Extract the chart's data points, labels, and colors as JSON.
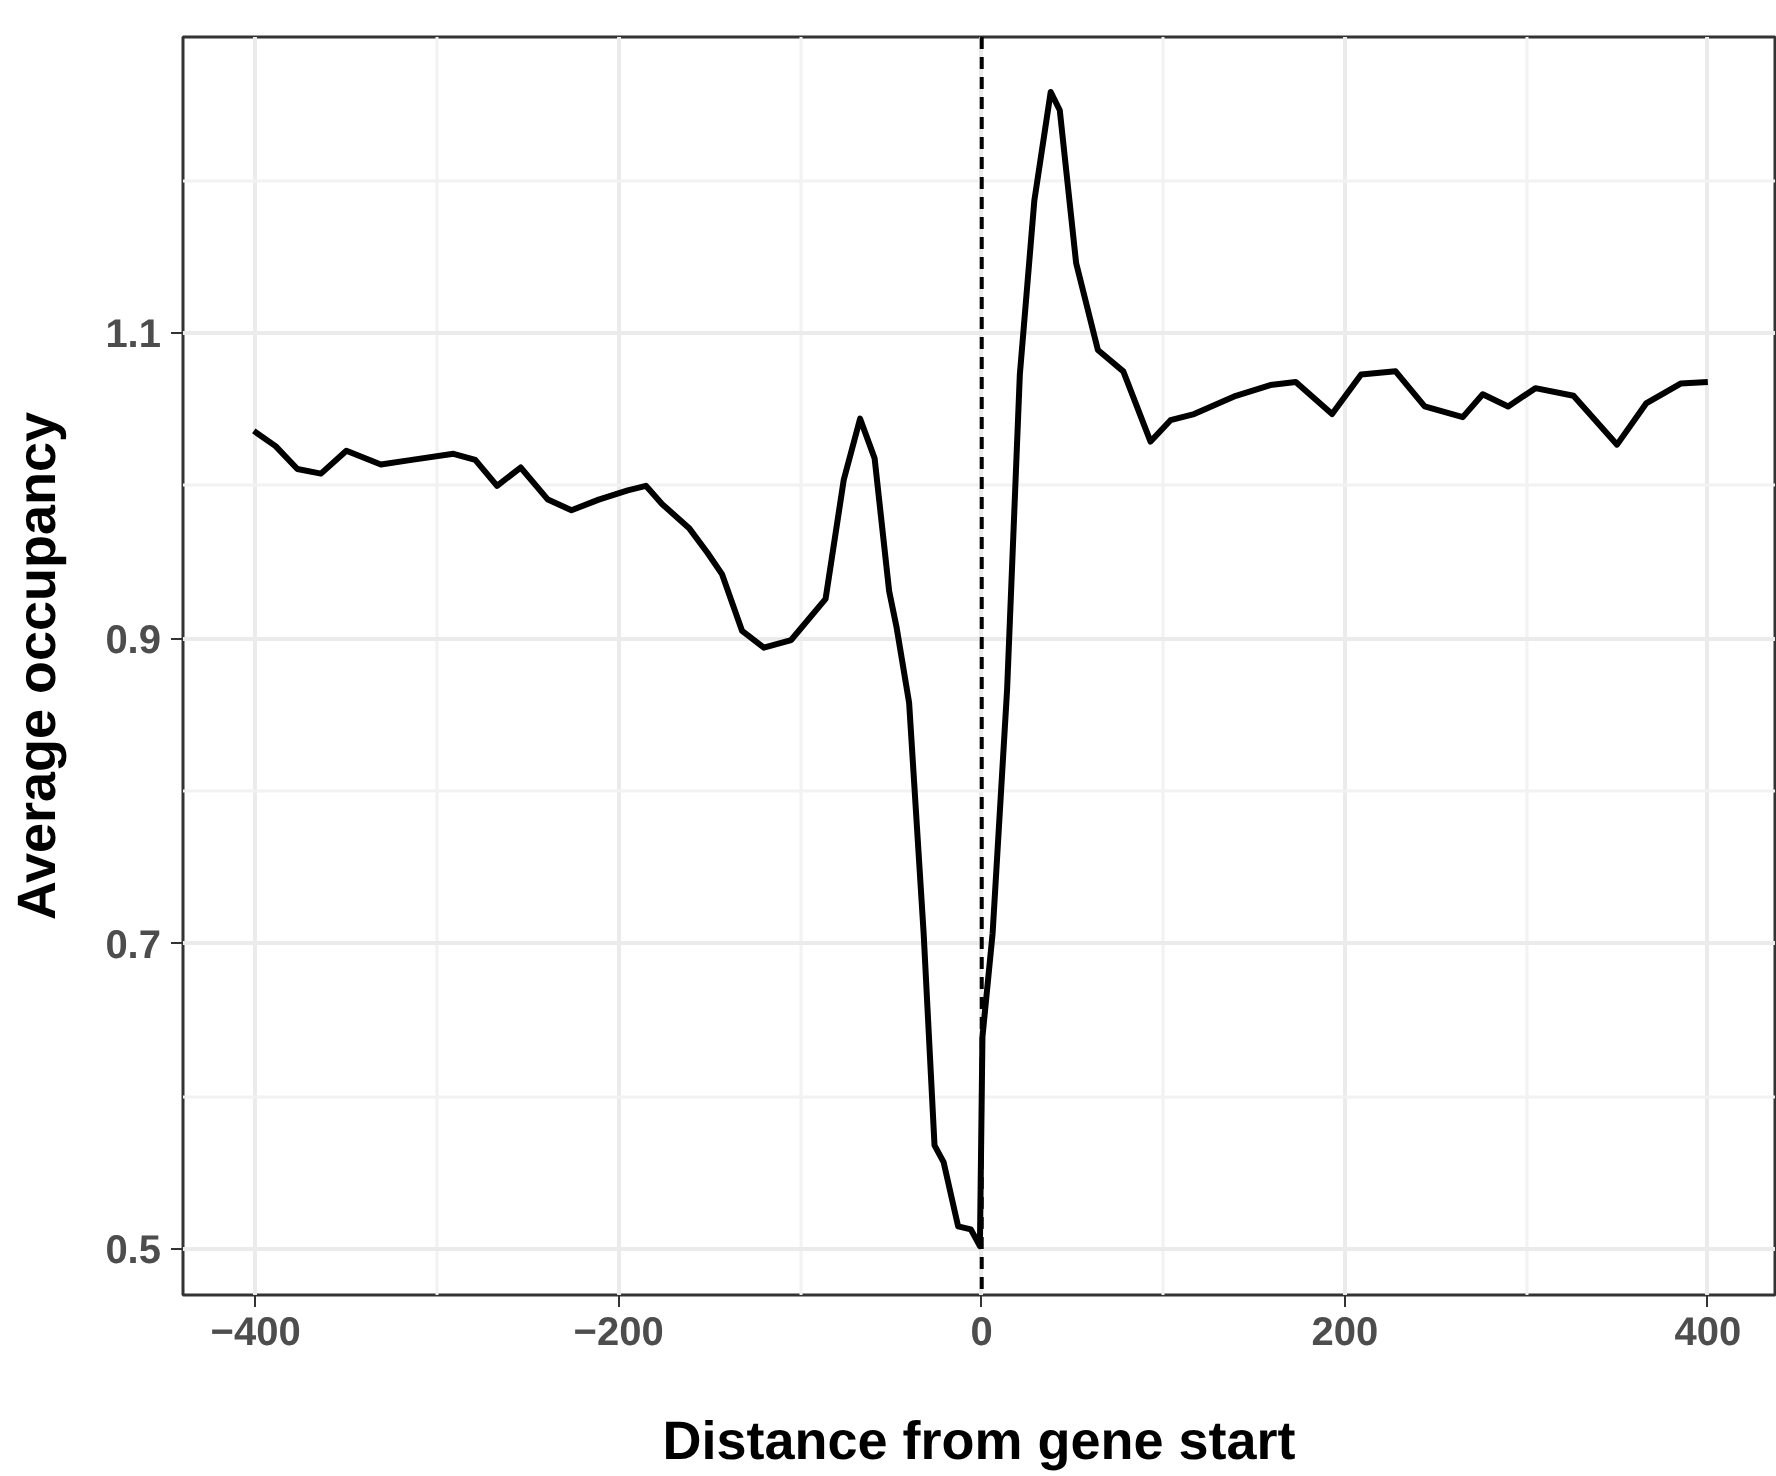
{
  "chart_data": {
    "type": "line",
    "xlabel": "Distance from gene start",
    "ylabel": "Average occupancy",
    "x": [
      -401,
      -389,
      -377,
      -364,
      -350,
      -331,
      -314,
      -291,
      -279,
      -267,
      -254,
      -239,
      -226,
      -211,
      -195,
      -185,
      -176,
      -161,
      -151,
      -143,
      -132,
      -120,
      -105,
      -86,
      -76,
      -67,
      -59,
      -51,
      -47,
      -40,
      -32,
      -26,
      -21,
      -13,
      -6,
      -1,
      0.4,
      6,
      14,
      21,
      29,
      38,
      43,
      52,
      64,
      78,
      93,
      104,
      117,
      140,
      159,
      173,
      193,
      209,
      228,
      244,
      265,
      276,
      290,
      305,
      326,
      350,
      366,
      385,
      400
    ],
    "series": [
      {
        "color": "#000000",
        "values": [
          1.036,
          1.026,
          1.011,
          1.008,
          1.023,
          1.014,
          1.017,
          1.021,
          1.017,
          1.0,
          1.012,
          0.991,
          0.984,
          0.991,
          0.997,
          1.0,
          0.988,
          0.972,
          0.956,
          0.942,
          0.905,
          0.894,
          0.899,
          0.926,
          1.004,
          1.044,
          1.018,
          0.931,
          0.908,
          0.858,
          0.707,
          0.568,
          0.557,
          0.515,
          0.513,
          0.502,
          0.639,
          0.707,
          0.867,
          1.073,
          1.187,
          1.258,
          1.246,
          1.146,
          1.089,
          1.075,
          1.029,
          1.043,
          1.047,
          1.059,
          1.066,
          1.068,
          1.047,
          1.073,
          1.075,
          1.052,
          1.045,
          1.06,
          1.052,
          1.064,
          1.059,
          1.027,
          1.054,
          1.067,
          1.068
        ]
      }
    ],
    "xlim": [
      -440,
      437
    ],
    "ylim": [
      0.47,
      1.294
    ],
    "xticks": [
      -400,
      -200,
      0,
      200,
      400
    ],
    "yticks": [
      0.5,
      0.7,
      0.9,
      1.1
    ],
    "ref_lines": [
      {
        "axis": "x",
        "value": 0,
        "color": "#000000",
        "line_style": "dashed"
      }
    ],
    "grid": true,
    "line_style": "solid"
  }
}
